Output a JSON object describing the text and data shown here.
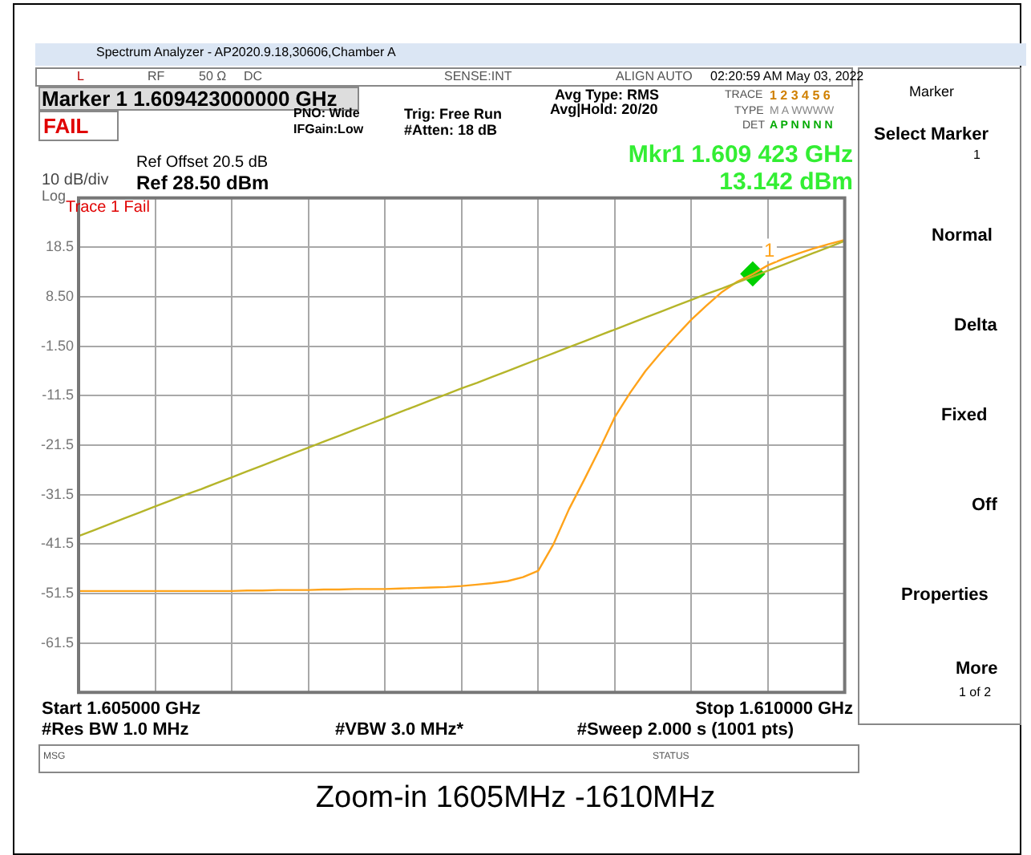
{
  "chart_data": {
    "type": "line",
    "title": "Zoom-in 1605MHz -1610MHz",
    "categories": [
      null,
      null,
      null,
      null,
      null,
      null,
      null,
      null,
      null,
      null,
      null,
      null,
      null,
      null,
      null,
      null,
      null,
      null,
      null,
      null,
      null,
      null,
      null,
      null,
      null,
      null,
      null,
      null,
      null,
      null,
      null,
      null,
      null,
      null,
      null,
      null,
      null,
      null,
      null,
      null,
      null,
      null,
      null,
      null,
      null,
      null,
      null,
      null,
      null,
      null,
      null
    ],
    "ylim": [
      -71.5,
      28.5
    ],
    "yticks": [
      {
        "value": -71.5,
        "label": null
      },
      {
        "value": -61.5,
        "label": "-61.5"
      },
      {
        "value": -51.5,
        "label": "-51.5"
      },
      {
        "value": -41.5,
        "label": "-41.5"
      },
      {
        "value": -31.5,
        "label": "-31.5"
      },
      {
        "value": -21.5,
        "label": "-21.5"
      },
      {
        "value": -11.5,
        "label": "-11.5"
      },
      {
        "value": -1.5,
        "label": "-1.50"
      },
      {
        "value": 8.5,
        "label": "8.50"
      },
      {
        "value": 18.5,
        "label": "18.5"
      },
      {
        "value": 28.5,
        "label": null
      }
    ],
    "grid": true,
    "legend": false,
    "tick_labels": "y",
    "marker": "none",
    "line_style": "solid",
    "series": [
      {
        "type": "line",
        "color": "#b5b52a",
        "values": [
          -39.9,
          -38.7,
          -37.5,
          -36.3,
          -35.1,
          -33.9,
          -32.7,
          -31.5,
          -30.4,
          -29.2,
          -28.0,
          -26.8,
          -25.6,
          -24.4,
          -23.2,
          -22.0,
          -20.8,
          -19.6,
          -18.4,
          -17.2,
          -16.0,
          -14.8,
          -13.6,
          -12.4,
          -11.2,
          -10.0,
          -8.9,
          -7.7,
          -6.5,
          -5.3,
          -4.1,
          -2.9,
          -1.7,
          -0.5,
          0.7,
          1.9,
          3.1,
          4.3,
          5.5,
          6.7,
          7.9,
          9.1,
          10.2,
          11.4,
          12.6,
          13.8,
          15.0,
          16.2,
          17.4,
          18.6,
          19.8
        ]
      },
      {
        "type": "line",
        "color": "#ffa31a",
        "values": [
          -51.0,
          -51.0,
          -51.0,
          -51.0,
          -51.0,
          -51.0,
          -51.0,
          -51.0,
          -51.0,
          -51.0,
          -51.0,
          -50.9,
          -50.9,
          -50.8,
          -50.8,
          -50.8,
          -50.7,
          -50.7,
          -50.6,
          -50.6,
          -50.6,
          -50.5,
          -50.4,
          -50.3,
          -50.2,
          -50.0,
          -49.7,
          -49.4,
          -49.0,
          -48.2,
          -46.9,
          -41.5,
          -34.5,
          -28.5,
          -22.3,
          -15.8,
          -10.9,
          -6.5,
          -2.8,
          0.6,
          3.9,
          6.8,
          9.5,
          11.6,
          13.1,
          14.9,
          16.2,
          17.3,
          18.3,
          19.2,
          20.0
        ]
      },
      {
        "type": "scatter",
        "name": "1",
        "color": "#00d000",
        "marker": "diamond",
        "values": [
          null,
          null,
          null,
          null,
          null,
          null,
          null,
          null,
          null,
          null,
          null,
          null,
          null,
          null,
          null,
          null,
          null,
          null,
          null,
          null,
          null,
          null,
          null,
          null,
          null,
          null,
          null,
          null,
          null,
          null,
          null,
          null,
          null,
          null,
          null,
          null,
          null,
          null,
          null,
          null,
          null,
          null,
          null,
          null,
          13.142,
          null,
          null,
          null,
          null,
          null,
          null
        ]
      }
    ],
    "annotations": [
      "Spectrum Analyzer - AP2020.9.18,30606,Chamber A",
      "L",
      "RF",
      "50 Ω",
      "DC",
      "SENSE:INT",
      "ALIGN AUTO",
      "02:20:59 AM May 03, 2022",
      "Marker 1 1.609423000000 GHz",
      "FAIL",
      "PNO: Wide",
      "IFGain:Low",
      "Trig: Free Run",
      "#Atten: 18 dB",
      "Avg Type: RMS",
      "Avg|Hold: 20/20",
      "TRACE",
      "1 2 3 4 5 6",
      "TYPE",
      "M A WWWW",
      "DET",
      "A P N N N N",
      "Mkr1 1.609 423 GHz",
      "13.142 dBm",
      "Ref Offset 20.5 dB",
      "10 dB/div",
      "Ref 28.50 dBm",
      "Log",
      "Trace 1 Fail",
      "Start 1.605000 GHz",
      "Stop 1.610000 GHz",
      "#Res BW 1.0 MHz",
      "#VBW 3.0 MHz*",
      "#Sweep  2.000 s (1001 pts)",
      "MSG",
      "STATUS",
      "Marker",
      "Select Marker",
      "1",
      "Normal",
      "Delta",
      "Fixed",
      "Off",
      "Properties",
      "More",
      "1 of 2"
    ]
  }
}
